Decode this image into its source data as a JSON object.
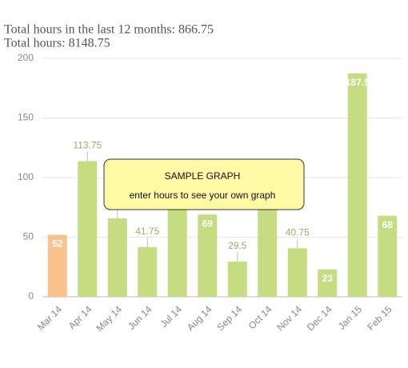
{
  "header": {
    "line1": "Total hours in the last 12 months: 866.75",
    "line2": "Total hours: 8148.75"
  },
  "overlay": {
    "title": "SAMPLE GRAPH",
    "text": "enter hours to see your own graph"
  },
  "chart_data": {
    "type": "bar",
    "categories": [
      "Mar 14",
      "Apr 14",
      "May 14",
      "Jun 14",
      "Jul 14",
      "Aug 14",
      "Sep 14",
      "Oct 14",
      "Nov 14",
      "Dec 14",
      "Jan 15",
      "Feb 15"
    ],
    "values": [
      52,
      113.75,
      65.75,
      41.75,
      88,
      69,
      29.5,
      85,
      40.75,
      23,
      187.5,
      68
    ],
    "colors": [
      "#f9c38f",
      "#c5dc80",
      "#c5dc80",
      "#c5dc80",
      "#c5dc80",
      "#c5dc80",
      "#c5dc80",
      "#c5dc80",
      "#c5dc80",
      "#c5dc80",
      "#c5dc80",
      "#c5dc80"
    ],
    "ylim": [
      0,
      200
    ],
    "yticks": [
      0,
      50,
      100,
      150,
      200
    ],
    "grid": true
  }
}
